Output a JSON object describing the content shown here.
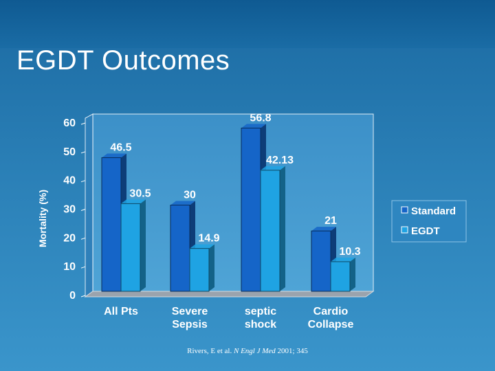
{
  "slide": {
    "title": "EGDT Outcomes",
    "citation_authors": "Rivers, E et al.",
    "citation_journal": "N Engl J Med",
    "citation_year_vol": "2001; 345"
  },
  "chart_data": {
    "type": "bar",
    "title": "",
    "ylabel": "Mortality (%)",
    "xlabel": "",
    "ylim": [
      0,
      60
    ],
    "yticks": [
      0,
      10,
      20,
      30,
      40,
      50,
      60
    ],
    "grid": false,
    "legend": "right",
    "categories": [
      [
        "All Pts"
      ],
      [
        "Severe",
        "Sepsis"
      ],
      [
        "septic",
        "shock"
      ],
      [
        "Cardio",
        "Collapse"
      ]
    ],
    "series": [
      {
        "name": "Standard",
        "values": [
          46.5,
          30,
          56.8,
          21
        ],
        "labels": [
          "46.5",
          "30",
          "56.8",
          "21"
        ],
        "color": "#1565c8"
      },
      {
        "name": "EGDT",
        "values": [
          30.5,
          14.9,
          42.13,
          10.3
        ],
        "labels": [
          "30.5",
          "14.9",
          "42.13",
          "10.3"
        ],
        "color": "#1fa3e3"
      }
    ]
  }
}
